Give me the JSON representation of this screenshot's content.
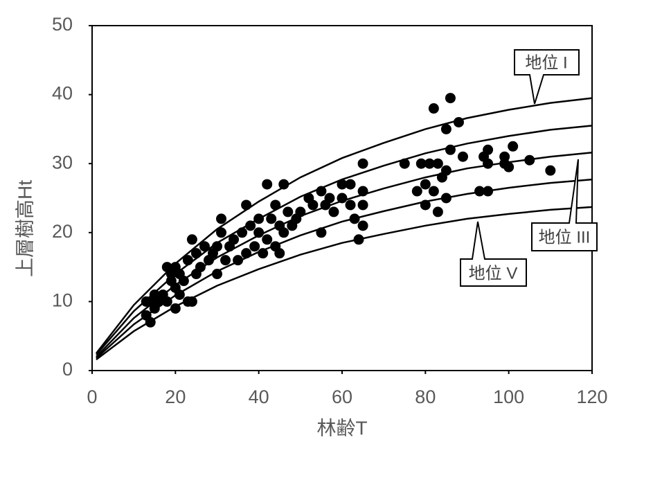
{
  "chart_data": {
    "type": "scatter",
    "x_label": "林齢T",
    "y_label": "上層樹高Ht",
    "xlim": [
      0,
      120
    ],
    "xticks": [
      0,
      20,
      40,
      60,
      80,
      100,
      120
    ],
    "ylim": [
      0,
      50
    ],
    "yticks": [
      0,
      10,
      20,
      30,
      40,
      50
    ],
    "grid": false,
    "color": "#000000",
    "curve_x": [
      1,
      10,
      20,
      30,
      40,
      50,
      60,
      70,
      80,
      90,
      100,
      110,
      120
    ],
    "curves": [
      {
        "values": [
          2.5,
          9.5,
          15.5,
          20.5,
          24.5,
          28,
          30.8,
          33,
          35,
          36.6,
          37.8,
          38.8,
          39.5
        ]
      },
      {
        "values": [
          2.3,
          8.6,
          14,
          18.5,
          22,
          25.2,
          27.7,
          29.7,
          31.5,
          32.9,
          34,
          34.9,
          35.5
        ]
      },
      {
        "values": [
          2,
          7.6,
          12.4,
          16.4,
          19.6,
          22.4,
          24.6,
          26.4,
          28,
          29.3,
          30.2,
          31,
          31.6
        ]
      },
      {
        "values": [
          1.8,
          6.7,
          10.9,
          14.4,
          17.2,
          19.6,
          21.6,
          23.1,
          24.5,
          25.6,
          26.5,
          27.2,
          27.7
        ]
      },
      {
        "values": [
          1.6,
          5.7,
          9.3,
          12.3,
          14.7,
          16.8,
          18.5,
          19.8,
          21,
          22,
          22.7,
          23.3,
          23.7
        ]
      }
    ],
    "points": {
      "x": [
        13,
        13,
        14,
        14,
        15,
        15,
        16,
        17,
        18,
        18,
        19,
        19,
        20,
        20,
        20,
        21,
        21,
        22,
        23,
        23,
        24,
        24,
        25,
        25,
        26,
        27,
        28,
        29,
        30,
        30,
        31,
        31,
        32,
        33,
        34,
        35,
        36,
        37,
        37,
        38,
        39,
        40,
        40,
        41,
        42,
        42,
        43,
        44,
        44,
        45,
        45,
        46,
        46,
        47,
        48,
        49,
        50,
        52,
        53,
        55,
        55,
        56,
        57,
        58,
        60,
        60,
        62,
        62,
        63,
        64,
        65,
        65,
        65,
        65,
        75,
        78,
        79,
        80,
        80,
        81,
        82,
        82,
        83,
        83,
        84,
        85,
        85,
        85,
        86,
        86,
        88,
        89,
        93,
        94,
        95,
        95,
        95,
        99,
        99,
        100,
        101,
        105,
        110
      ],
      "y": [
        8,
        10,
        7,
        10,
        9,
        11,
        10,
        11,
        10,
        15,
        13,
        14,
        9,
        12,
        15,
        11,
        14,
        13,
        10,
        16,
        10,
        19,
        14,
        17,
        15,
        18,
        16,
        17,
        14,
        18,
        20,
        22,
        16,
        18,
        19,
        16,
        20,
        17,
        24,
        21,
        18,
        20,
        22,
        17,
        19,
        27,
        22,
        18,
        24,
        21,
        17,
        27,
        20,
        23,
        21,
        22,
        23,
        25,
        24,
        20,
        26,
        24,
        25,
        23,
        27,
        25,
        24,
        27,
        22,
        19,
        21,
        24,
        26,
        30,
        30,
        26,
        30,
        27,
        24,
        30,
        38,
        26,
        23,
        30,
        28,
        25,
        35,
        29,
        39.5,
        32,
        36,
        31,
        26,
        31,
        30,
        26,
        32,
        30,
        31,
        29.5,
        32.5,
        30.5,
        29
      ]
    },
    "annotations": [
      "地位 I",
      "地位 III",
      "地位 V"
    ]
  }
}
